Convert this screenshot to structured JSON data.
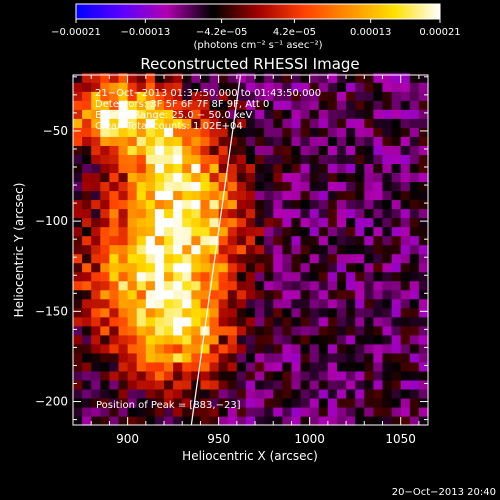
{
  "chart_data": {
    "type": "heatmap",
    "title": "Reconstructed RHESSI Image",
    "xlabel": "Heliocentric X (arcsec)",
    "ylabel": "Heliocentric Y (arcsec)",
    "xlim": [
      870,
      1065
    ],
    "ylim": [
      -213,
      -19
    ],
    "x_ticks": [
      900,
      950,
      1000,
      1050
    ],
    "x_tick_labels": [
      "900",
      "950",
      "1000",
      "1050"
    ],
    "y_ticks": [
      -50,
      -100,
      -150,
      -200
    ],
    "y_tick_labels": [
      "−50",
      "−100",
      "−150",
      "−200"
    ],
    "colorbar": {
      "label": "(photons cm⁻² s⁻¹ asec⁻²)",
      "range": [
        -0.00021,
        0.00021
      ],
      "tick_values": [
        -0.00021,
        -0.00013,
        -4.2e-05,
        4.2e-05,
        0.00013,
        0.00021
      ],
      "tick_labels": [
        "−0.00021",
        "−0.00013",
        "−4.2e−05",
        "4.2e−05",
        "0.00013",
        "0.00021"
      ],
      "colors": [
        "#0000ff",
        "#5a00ff",
        "#b000b0",
        "#000000",
        "#a00000",
        "#ff4000",
        "#ff9000",
        "#ffe000",
        "#ffffff"
      ]
    },
    "annotations": [
      "21−Oct−2013 01:37:50.000 to 01:43:50.000",
      "Detectors: 3F 5F 6F 7F 8F 9F, Att 0",
      "Energy Range: 25.0 − 50.0 keV",
      "Clean     Total counts: 1.02E+04",
      "Position of Peak = [883,−23]"
    ],
    "limb_line": {
      "x": [
        935,
        962
      ],
      "y": [
        -213,
        -19
      ]
    },
    "peak_position": [
      883,
      -23
    ],
    "grid_size_arcsec": 5,
    "regions": [
      {
        "x": 890,
        "y": -40,
        "sx": 18,
        "sy": 14,
        "amp": 1.0
      },
      {
        "x": 935,
        "y": -95,
        "sx": 20,
        "sy": 35,
        "amp": 0.9
      },
      {
        "x": 905,
        "y": -130,
        "sx": 25,
        "sy": 30,
        "amp": 0.75
      },
      {
        "x": 930,
        "y": -165,
        "sx": 18,
        "sy": 20,
        "amp": 0.65
      },
      {
        "x": 915,
        "y": -60,
        "sx": 15,
        "sy": 20,
        "amp": 0.55
      }
    ],
    "background_level": -0.35
  },
  "timestamp": "20−Oct−2013 20:40"
}
